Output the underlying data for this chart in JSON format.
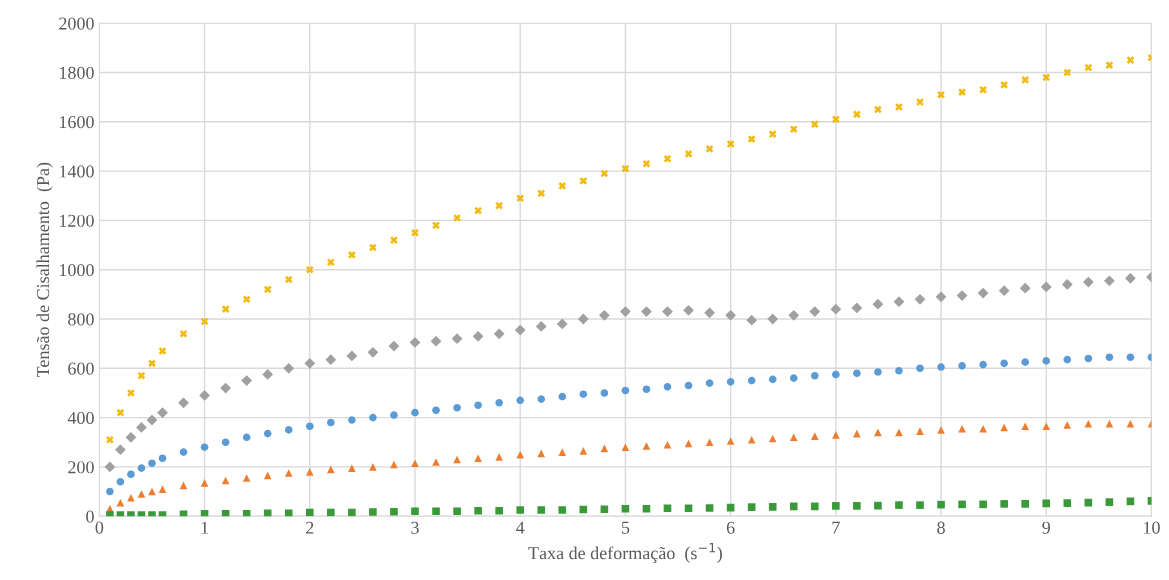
{
  "chart_data": {
    "type": "scatter",
    "xlabel": "Taxa de deformação  (s$^{−1}$)",
    "ylabel": "Tensão de Cisalhamento  (Pa)",
    "x": [
      0.1,
      0.2,
      0.3,
      0.4,
      0.5,
      0.6,
      0.8,
      1.0,
      1.2,
      1.4,
      1.6,
      1.8,
      2.0,
      2.2,
      2.4,
      2.6,
      2.8,
      3.0,
      3.2,
      3.4,
      3.6,
      3.8,
      4.0,
      4.2,
      4.4,
      4.6,
      4.8,
      5.0,
      5.2,
      5.4,
      5.6,
      5.8,
      6.0,
      6.2,
      6.4,
      6.6,
      6.8,
      7.0,
      7.2,
      7.4,
      7.6,
      7.8,
      8.0,
      8.2,
      8.4,
      8.6,
      8.8,
      9.0,
      9.2,
      9.4,
      9.6,
      9.8,
      10.0
    ],
    "series": [
      {
        "color": "#f2bb13",
        "marker": "cross",
        "values": [
          310,
          420,
          500,
          570,
          620,
          670,
          740,
          790,
          840,
          880,
          920,
          960,
          1000,
          1030,
          1060,
          1090,
          1120,
          1150,
          1180,
          1210,
          1240,
          1260,
          1290,
          1310,
          1340,
          1360,
          1390,
          1410,
          1430,
          1450,
          1470,
          1490,
          1510,
          1530,
          1550,
          1570,
          1590,
          1610,
          1630,
          1650,
          1660,
          1680,
          1710,
          1720,
          1730,
          1750,
          1770,
          1780,
          1800,
          1820,
          1830,
          1850,
          1860
        ]
      },
      {
        "color": "#a0a0a0",
        "marker": "diamond",
        "values": [
          200,
          270,
          320,
          360,
          390,
          420,
          460,
          490,
          520,
          550,
          575,
          600,
          620,
          635,
          650,
          665,
          690,
          705,
          710,
          720,
          730,
          740,
          755,
          770,
          780,
          800,
          815,
          830,
          830,
          830,
          835,
          825,
          815,
          795,
          800,
          815,
          830,
          840,
          845,
          860,
          870,
          880,
          890,
          895,
          905,
          915,
          925,
          930,
          940,
          950,
          955,
          965,
          970
        ]
      },
      {
        "color": "#5b9bd5",
        "marker": "circle",
        "values": [
          100,
          140,
          170,
          195,
          215,
          235,
          260,
          280,
          300,
          320,
          335,
          350,
          365,
          380,
          390,
          400,
          410,
          420,
          430,
          440,
          450,
          460,
          470,
          475,
          485,
          495,
          500,
          510,
          515,
          525,
          530,
          540,
          545,
          550,
          555,
          560,
          570,
          575,
          580,
          585,
          590,
          600,
          605,
          610,
          615,
          620,
          625,
          630,
          635,
          640,
          645,
          645,
          645
        ]
      },
      {
        "color": "#ed7d31",
        "marker": "triangle",
        "values": [
          30,
          55,
          75,
          90,
          100,
          110,
          125,
          135,
          145,
          155,
          165,
          175,
          180,
          190,
          195,
          200,
          210,
          215,
          220,
          230,
          235,
          240,
          250,
          255,
          260,
          265,
          275,
          280,
          285,
          290,
          295,
          300,
          305,
          310,
          315,
          320,
          325,
          330,
          335,
          340,
          340,
          345,
          350,
          355,
          355,
          360,
          365,
          365,
          370,
          375,
          375,
          375,
          375
        ]
      },
      {
        "color": "#3a9a3a",
        "marker": "square",
        "values": [
          5,
          5,
          5,
          5,
          5,
          5,
          8,
          10,
          10,
          10,
          12,
          12,
          15,
          15,
          15,
          17,
          18,
          20,
          20,
          20,
          22,
          22,
          25,
          25,
          25,
          27,
          28,
          30,
          30,
          32,
          32,
          33,
          35,
          37,
          38,
          40,
          40,
          42,
          42,
          43,
          45,
          45,
          47,
          48,
          48,
          50,
          50,
          52,
          53,
          55,
          57,
          60,
          62
        ]
      }
    ],
    "xlim": [
      0,
      10
    ],
    "xticks": [
      0,
      1,
      2,
      3,
      4,
      5,
      6,
      7,
      8,
      9,
      10
    ],
    "ylim": [
      0,
      2000
    ],
    "yticks": [
      0,
      200,
      400,
      600,
      800,
      1000,
      1200,
      1400,
      1600,
      1800,
      2000
    ],
    "grid": true
  }
}
